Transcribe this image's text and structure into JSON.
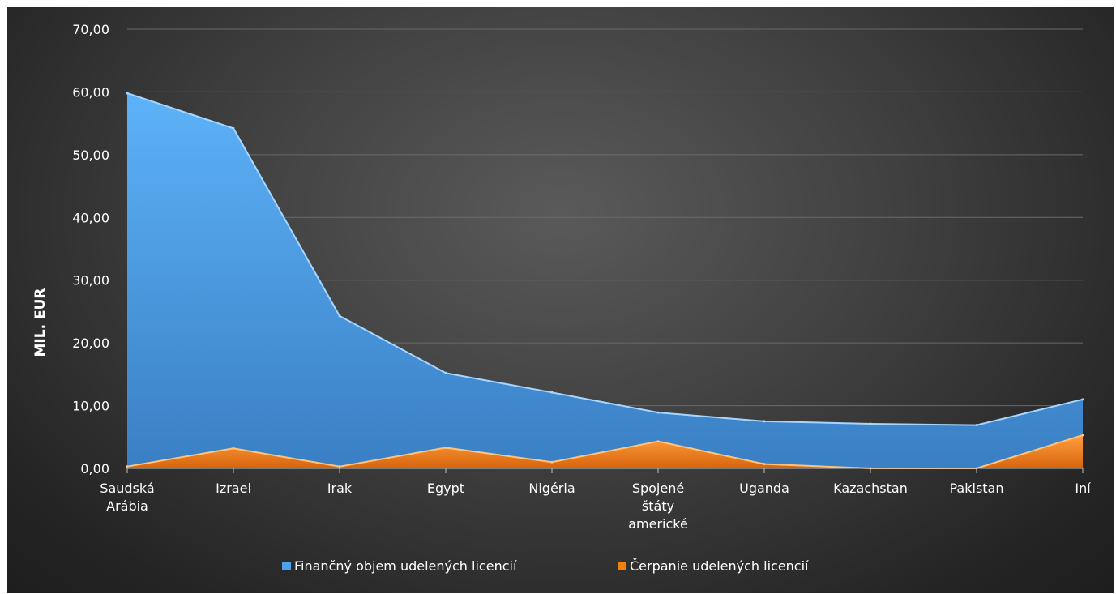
{
  "chart_data": {
    "type": "area",
    "categories": [
      "Saudská Arábia",
      "Izrael",
      "Irak",
      "Egypt",
      "Nigéria",
      "Spojené štáty americké",
      "Uganda",
      "Kazachstan",
      "Pakistan",
      "Iní"
    ],
    "category_lines": [
      [
        "Saudská",
        "Arábia"
      ],
      [
        "Izrael"
      ],
      [
        "Irak"
      ],
      [
        "Egypt"
      ],
      [
        "Nigéria"
      ],
      [
        "Spojené",
        "štáty",
        "americké"
      ],
      [
        "Uganda"
      ],
      [
        "Kazachstan"
      ],
      [
        "Pakistan"
      ],
      [
        "Iní"
      ]
    ],
    "series": [
      {
        "name": "Finančný objem  udelených licencií",
        "values": [
          59.8,
          54.2,
          24.3,
          15.2,
          12.1,
          8.9,
          7.5,
          7.1,
          6.9,
          11.0
        ],
        "color": "#5aa9ee"
      },
      {
        "name": "Čerpanie udelených licencií",
        "values": [
          0.3,
          3.2,
          0.3,
          3.3,
          1.0,
          4.3,
          0.7,
          0.0,
          0.0,
          5.3
        ],
        "color": "#f08a1c"
      }
    ],
    "ylabel": "MIL. EUR",
    "ylim": [
      0,
      70
    ],
    "yticks": [
      "0,00",
      "10,00",
      "20,00",
      "30,00",
      "40,00",
      "50,00",
      "60,00",
      "70,00"
    ],
    "grid": true,
    "legend": "bottom"
  }
}
